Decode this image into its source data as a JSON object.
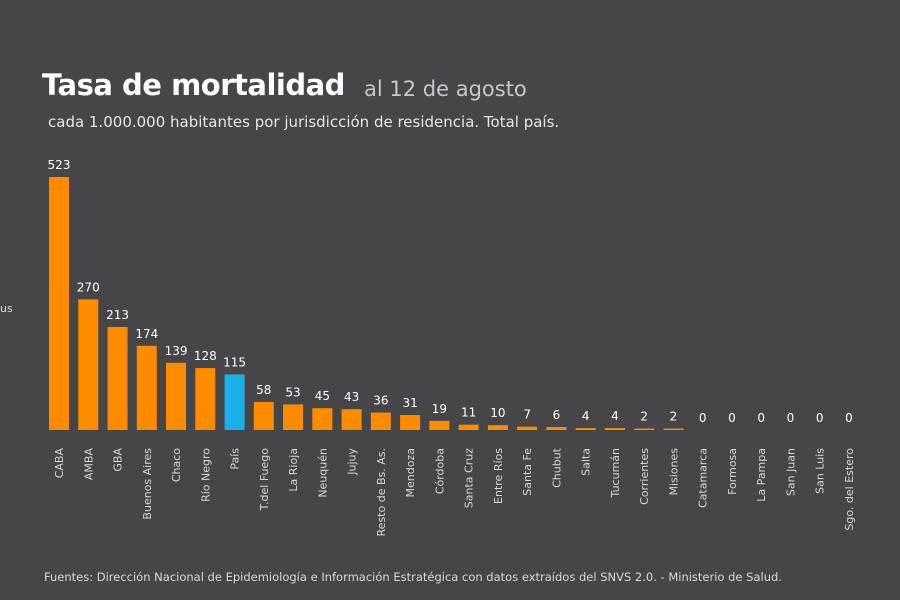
{
  "chart_data": {
    "type": "bar",
    "title": "Tasa de mortalidad",
    "title_date": "al 12 de agosto",
    "subtitle": "cada 1.000.000 habitantes por jurisdicción de residencia. Total país.",
    "side_label_fragment": "us",
    "categories": [
      "CABA",
      "AMBA",
      "GBA",
      "Buenos Aires",
      "Chaco",
      "Río Negro",
      "País",
      "T.del Fuego",
      "La Rioja",
      "Neuquén",
      "Jujuy",
      "Resto de Bs. As.",
      "Mendoza",
      "Córdoba",
      "Santa Cruz",
      "Entre Ríos",
      "Santa Fe",
      "Chubut",
      "Salta",
      "Tucumán",
      "Corrientes",
      "Misiones",
      "Catamarca",
      "Formosa",
      "La Pampa",
      "San Juan",
      "San Luis",
      "Sgo. del Estero"
    ],
    "values": [
      523,
      270,
      213,
      174,
      139,
      128,
      115,
      58,
      53,
      45,
      43,
      36,
      31,
      19,
      11,
      10,
      7,
      6,
      4,
      4,
      2,
      2,
      0,
      0,
      0,
      0,
      0,
      0
    ],
    "highlight": "País",
    "colors": {
      "bar": "#ff8c00",
      "highlight": "#1ab0e8",
      "background": "#464649"
    },
    "source": "Fuentes: Dirección Nacional de Epidemiología e Información Estratégica con datos extraídos del SNVS 2.0. - Ministerio de Salud."
  }
}
